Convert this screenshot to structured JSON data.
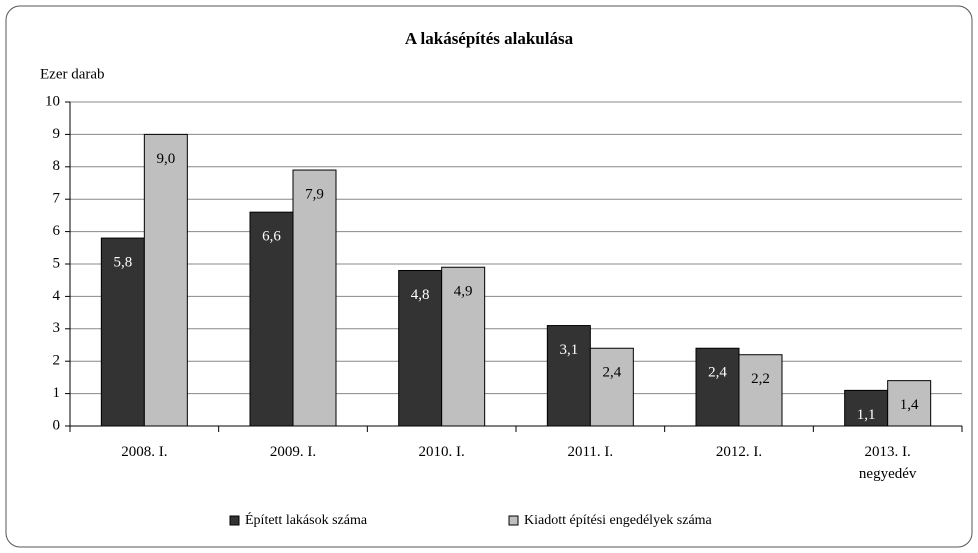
{
  "chart_data": {
    "type": "bar",
    "title": "A lakásépítés alakulása",
    "y_axis_label": "Ezer darab",
    "categories": [
      "2008. I.",
      "2009. I.",
      "2010. I.",
      "2011. I.",
      "2012. I.",
      "2013. I. negyedév"
    ],
    "series": [
      {
        "name": "Épített lakások száma",
        "color": "#333333",
        "values": [
          5.8,
          6.6,
          4.8,
          3.1,
          2.4,
          1.1
        ],
        "value_labels": [
          "5,8",
          "6,6",
          "4,8",
          "3,1",
          "2,4",
          "1,1"
        ]
      },
      {
        "name": "Kiadott építési engedélyek száma",
        "color": "#bfbfbf",
        "values": [
          9.0,
          7.9,
          4.9,
          2.4,
          2.2,
          1.4
        ],
        "value_labels": [
          "9,0",
          "7,9",
          "4,9",
          "2,4",
          "2,2",
          "1,4"
        ]
      }
    ],
    "ylim": [
      0,
      10
    ],
    "yticks": [
      0,
      1,
      2,
      3,
      4,
      5,
      6,
      7,
      8,
      9,
      10
    ],
    "grid": true,
    "legend": "bottom"
  }
}
